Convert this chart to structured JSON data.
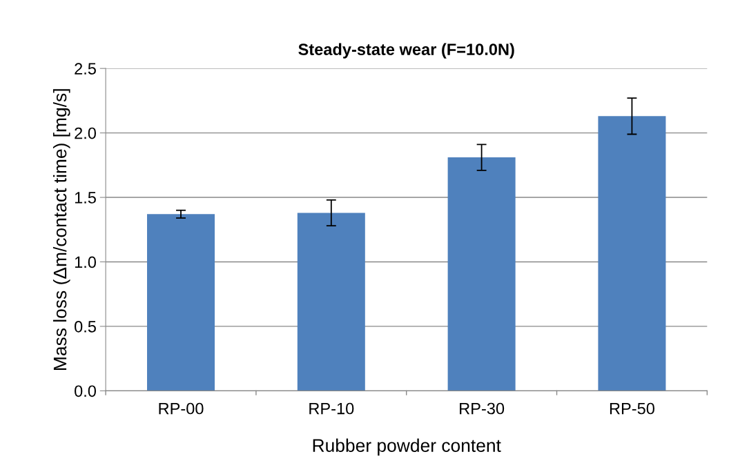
{
  "chart_data": {
    "type": "bar",
    "title": "Steady-state wear (F=10.0N)",
    "xlabel": "Rubber powder content",
    "ylabel": "Mass loss (Δm/contact time) [mg/s]",
    "categories": [
      "RP-00",
      "RP-10",
      "RP-30",
      "RP-50"
    ],
    "values": [
      1.37,
      1.38,
      1.81,
      2.13
    ],
    "errors": [
      0.03,
      0.1,
      0.1,
      0.14
    ],
    "color": "#4f81bd",
    "ylim": [
      0,
      2.5
    ],
    "yticks": [
      {
        "value": 0,
        "label": "0.0"
      },
      {
        "value": 0.5,
        "label": "0.5"
      },
      {
        "value": 1.0,
        "label": "1.0"
      },
      {
        "value": 1.5,
        "label": "1.5"
      },
      {
        "value": 2.0,
        "label": "2.0"
      },
      {
        "value": 2.5,
        "label": "2.5"
      }
    ],
    "grid": "y",
    "legend": false
  }
}
